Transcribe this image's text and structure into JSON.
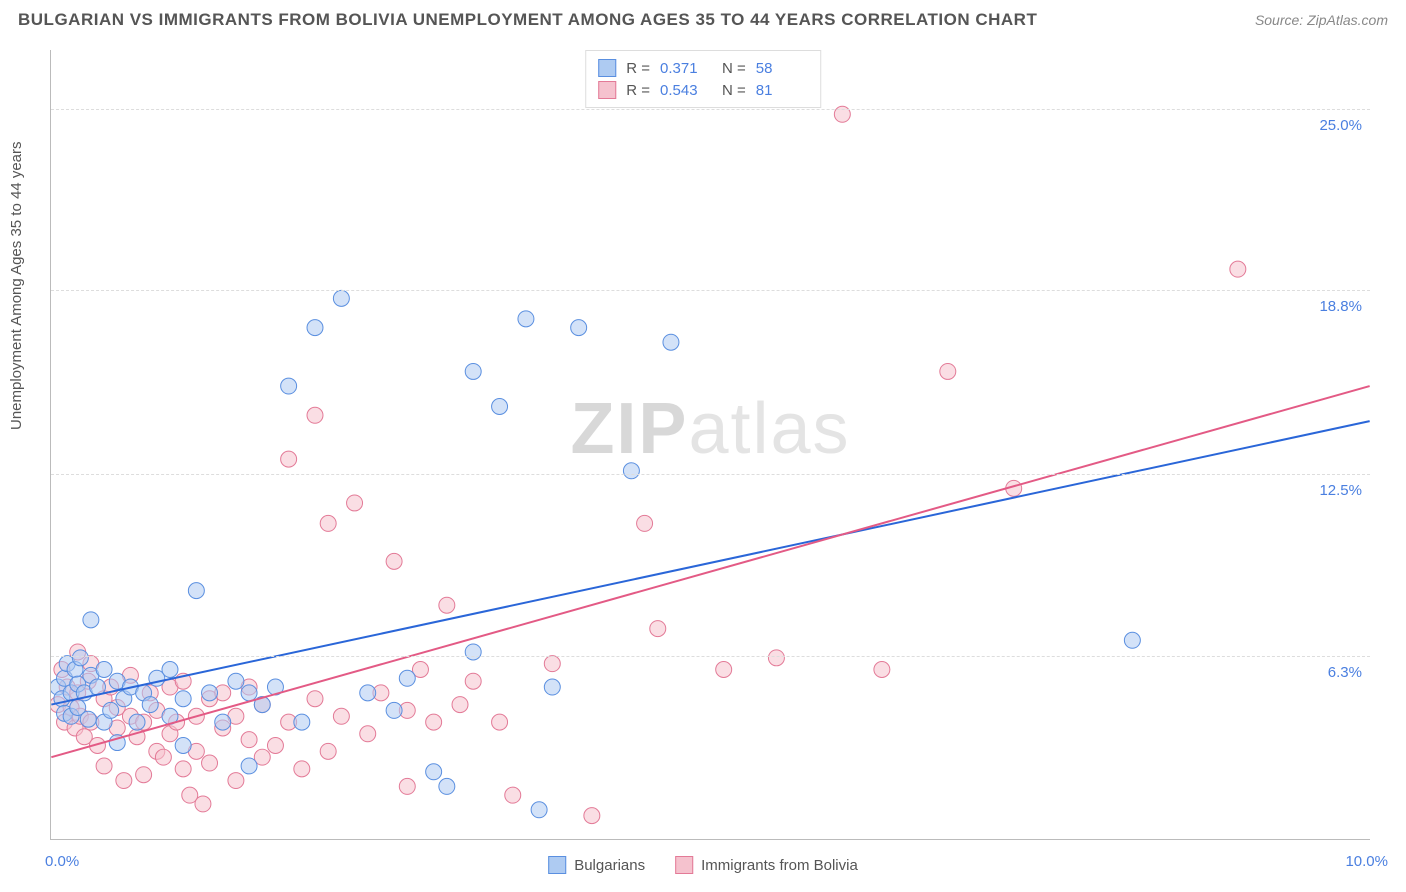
{
  "title": "BULGARIAN VS IMMIGRANTS FROM BOLIVIA UNEMPLOYMENT AMONG AGES 35 TO 44 YEARS CORRELATION CHART",
  "source": "Source: ZipAtlas.com",
  "watermark_a": "ZIP",
  "watermark_b": "atlas",
  "ylabel": "Unemployment Among Ages 35 to 44 years",
  "chart": {
    "type": "scatter",
    "xlim": [
      0.0,
      10.0
    ],
    "ylim": [
      0.0,
      27.0
    ],
    "xtick_labels": [
      "0.0%",
      "10.0%"
    ],
    "ytick_values": [
      6.3,
      12.5,
      18.8,
      25.0
    ],
    "ytick_labels": [
      "6.3%",
      "12.5%",
      "18.8%",
      "25.0%"
    ],
    "grid_color": "#dddddd",
    "axis_color": "#bbbbbb",
    "background_color": "#ffffff",
    "tick_color": "#4a7fe0",
    "marker_radius": 8,
    "marker_opacity": 0.55,
    "line_width": 2,
    "title_fontsize": 17,
    "label_fontsize": 15
  },
  "series": [
    {
      "name": "Bulgarians",
      "fill": "#aecbf2",
      "stroke": "#5a8fe0",
      "line_color": "#2a66d8",
      "R": "0.371",
      "N": "58",
      "trend": {
        "x1": 0.0,
        "y1": 4.6,
        "x2": 10.0,
        "y2": 14.3
      },
      "points": [
        [
          0.05,
          5.2
        ],
        [
          0.08,
          4.8
        ],
        [
          0.1,
          5.5
        ],
        [
          0.1,
          4.3
        ],
        [
          0.12,
          6.0
        ],
        [
          0.15,
          5.0
        ],
        [
          0.15,
          4.2
        ],
        [
          0.18,
          5.8
        ],
        [
          0.2,
          5.3
        ],
        [
          0.2,
          4.5
        ],
        [
          0.22,
          6.2
        ],
        [
          0.25,
          5.0
        ],
        [
          0.28,
          4.1
        ],
        [
          0.3,
          5.6
        ],
        [
          0.3,
          7.5
        ],
        [
          0.35,
          5.2
        ],
        [
          0.4,
          4.0
        ],
        [
          0.4,
          5.8
        ],
        [
          0.45,
          4.4
        ],
        [
          0.5,
          5.4
        ],
        [
          0.5,
          3.3
        ],
        [
          0.55,
          4.8
        ],
        [
          0.6,
          5.2
        ],
        [
          0.65,
          4.0
        ],
        [
          0.7,
          5.0
        ],
        [
          0.75,
          4.6
        ],
        [
          0.8,
          5.5
        ],
        [
          0.9,
          4.2
        ],
        [
          0.9,
          5.8
        ],
        [
          1.0,
          4.8
        ],
        [
          1.0,
          3.2
        ],
        [
          1.1,
          8.5
        ],
        [
          1.2,
          5.0
        ],
        [
          1.3,
          4.0
        ],
        [
          1.4,
          5.4
        ],
        [
          1.5,
          2.5
        ],
        [
          1.5,
          5.0
        ],
        [
          1.6,
          4.6
        ],
        [
          1.7,
          5.2
        ],
        [
          1.8,
          15.5
        ],
        [
          1.9,
          4.0
        ],
        [
          2.0,
          17.5
        ],
        [
          2.2,
          18.5
        ],
        [
          2.4,
          5.0
        ],
        [
          2.6,
          4.4
        ],
        [
          2.7,
          5.5
        ],
        [
          2.9,
          2.3
        ],
        [
          3.0,
          1.8
        ],
        [
          3.2,
          16.0
        ],
        [
          3.2,
          6.4
        ],
        [
          3.4,
          14.8
        ],
        [
          3.6,
          17.8
        ],
        [
          3.7,
          1.0
        ],
        [
          3.8,
          5.2
        ],
        [
          4.0,
          17.5
        ],
        [
          4.4,
          12.6
        ],
        [
          4.7,
          17.0
        ],
        [
          8.2,
          6.8
        ]
      ]
    },
    {
      "name": "Immigants from Bolivia",
      "label": "Immigrants from Bolivia",
      "fill": "#f5c2ce",
      "stroke": "#e37a97",
      "line_color": "#e35a85",
      "R": "0.543",
      "N": "81",
      "trend": {
        "x1": 0.0,
        "y1": 2.8,
        "x2": 10.0,
        "y2": 15.5
      },
      "points": [
        [
          0.05,
          4.6
        ],
        [
          0.08,
          5.8
        ],
        [
          0.1,
          4.0
        ],
        [
          0.12,
          5.2
        ],
        [
          0.15,
          4.5
        ],
        [
          0.18,
          3.8
        ],
        [
          0.2,
          5.0
        ],
        [
          0.2,
          6.4
        ],
        [
          0.22,
          4.2
        ],
        [
          0.25,
          3.5
        ],
        [
          0.28,
          5.4
        ],
        [
          0.3,
          4.0
        ],
        [
          0.3,
          6.0
        ],
        [
          0.35,
          3.2
        ],
        [
          0.4,
          4.8
        ],
        [
          0.4,
          2.5
        ],
        [
          0.45,
          5.2
        ],
        [
          0.5,
          3.8
        ],
        [
          0.5,
          4.5
        ],
        [
          0.55,
          2.0
        ],
        [
          0.6,
          4.2
        ],
        [
          0.6,
          5.6
        ],
        [
          0.65,
          3.5
        ],
        [
          0.7,
          4.0
        ],
        [
          0.7,
          2.2
        ],
        [
          0.75,
          5.0
        ],
        [
          0.8,
          3.0
        ],
        [
          0.8,
          4.4
        ],
        [
          0.85,
          2.8
        ],
        [
          0.9,
          5.2
        ],
        [
          0.9,
          3.6
        ],
        [
          0.95,
          4.0
        ],
        [
          1.0,
          2.4
        ],
        [
          1.0,
          5.4
        ],
        [
          1.05,
          1.5
        ],
        [
          1.1,
          4.2
        ],
        [
          1.1,
          3.0
        ],
        [
          1.15,
          1.2
        ],
        [
          1.2,
          4.8
        ],
        [
          1.2,
          2.6
        ],
        [
          1.3,
          3.8
        ],
        [
          1.3,
          5.0
        ],
        [
          1.4,
          2.0
        ],
        [
          1.4,
          4.2
        ],
        [
          1.5,
          3.4
        ],
        [
          1.5,
          5.2
        ],
        [
          1.6,
          2.8
        ],
        [
          1.6,
          4.6
        ],
        [
          1.7,
          3.2
        ],
        [
          1.8,
          13.0
        ],
        [
          1.8,
          4.0
        ],
        [
          1.9,
          2.4
        ],
        [
          2.0,
          14.5
        ],
        [
          2.0,
          4.8
        ],
        [
          2.1,
          3.0
        ],
        [
          2.1,
          10.8
        ],
        [
          2.2,
          4.2
        ],
        [
          2.3,
          11.5
        ],
        [
          2.4,
          3.6
        ],
        [
          2.5,
          5.0
        ],
        [
          2.6,
          9.5
        ],
        [
          2.7,
          4.4
        ],
        [
          2.7,
          1.8
        ],
        [
          2.8,
          5.8
        ],
        [
          2.9,
          4.0
        ],
        [
          3.0,
          8.0
        ],
        [
          3.1,
          4.6
        ],
        [
          3.2,
          5.4
        ],
        [
          3.4,
          4.0
        ],
        [
          3.5,
          1.5
        ],
        [
          3.8,
          6.0
        ],
        [
          4.1,
          0.8
        ],
        [
          4.5,
          10.8
        ],
        [
          4.6,
          7.2
        ],
        [
          5.1,
          5.8
        ],
        [
          5.5,
          6.2
        ],
        [
          6.0,
          24.8
        ],
        [
          6.3,
          5.8
        ],
        [
          6.8,
          16.0
        ],
        [
          7.3,
          12.0
        ],
        [
          9.0,
          19.5
        ]
      ]
    }
  ],
  "legend_top": {
    "labels": {
      "R": "R  =",
      "N": "N  ="
    }
  },
  "legend_bottom": [
    {
      "key": 0,
      "label": "Bulgarians"
    },
    {
      "key": 1,
      "label": "Immigrants from Bolivia"
    }
  ]
}
